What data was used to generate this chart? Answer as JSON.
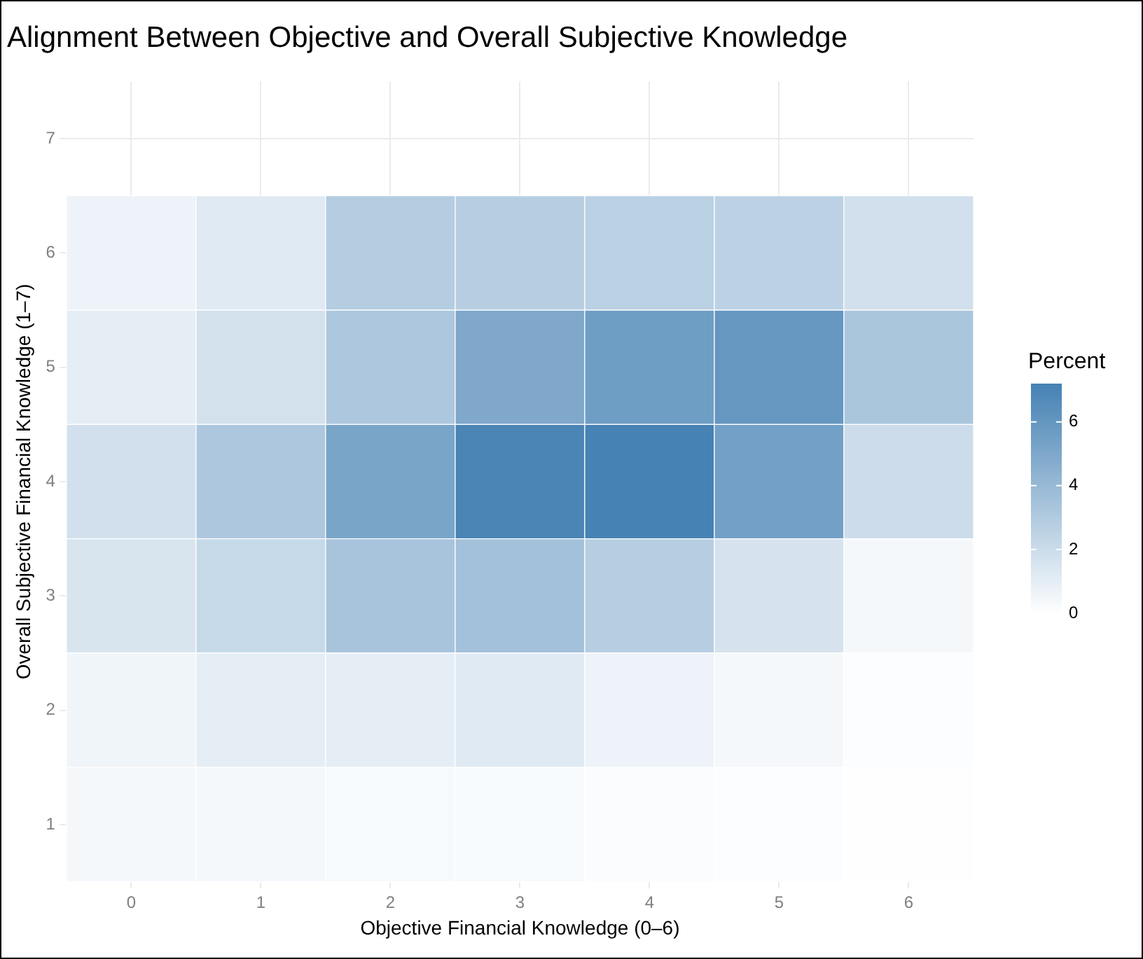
{
  "chart_data": {
    "type": "heatmap",
    "title": "Alignment Between Objective and Overall Subjective Knowledge",
    "xlabel": "Objective Financial Knowledge (0–6)",
    "ylabel": "Overall Subjective Financial Knowledge (1–7)",
    "clabel": "Percent",
    "categories": [
      "0",
      "1",
      "2",
      "3",
      "4",
      "5",
      "6"
    ],
    "y_categories": [
      "7",
      "6",
      "5",
      "4",
      "3",
      "2",
      "1"
    ],
    "cells": [
      [
        null,
        null,
        null,
        null,
        null,
        null,
        null
      ],
      [
        0.7,
        1.2,
        2.9,
        2.8,
        2.7,
        2.6,
        1.8
      ],
      [
        1.0,
        1.7,
        3.2,
        5.0,
        5.6,
        6.0,
        3.3
      ],
      [
        1.8,
        3.2,
        5.2,
        7.0,
        7.2,
        5.5,
        2.0
      ],
      [
        1.5,
        2.2,
        3.4,
        3.6,
        2.8,
        1.6,
        0.4
      ],
      [
        0.6,
        1.0,
        1.0,
        1.2,
        0.7,
        0.4,
        0.1
      ],
      [
        0.4,
        0.4,
        0.3,
        0.3,
        0.2,
        0.1,
        0.05
      ]
    ],
    "colors": [
      "#ffffff",
      "#4682b4"
    ],
    "clim": [
      0,
      7.2
    ],
    "cticks": [
      0,
      2,
      4,
      6
    ],
    "grid": true
  }
}
